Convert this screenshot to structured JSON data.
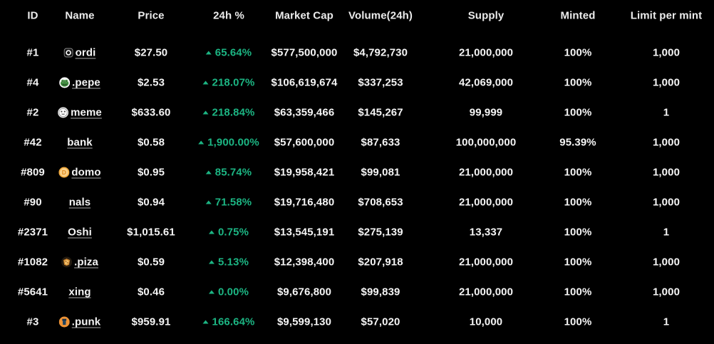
{
  "colors": {
    "background": "#000000",
    "text_primary": "#f5f5f5",
    "positive_green": "#1cb583",
    "link_underline": "#a8a8a8"
  },
  "table": {
    "headers": [
      "ID",
      "Name",
      "Price",
      "24h %",
      "Market Cap",
      "Volume(24h)",
      "Supply",
      "Minted",
      "Limit per mint"
    ],
    "rows": [
      {
        "id": "#1",
        "name": "ordi",
        "icon": "ordi-logo-icon",
        "price": "$27.50",
        "change": "65.64%",
        "change_direction": "up",
        "market_cap": "$577,500,000",
        "volume_24h": "$4,792,730",
        "supply": "21,000,000",
        "minted": "100%",
        "limit_per_mint": "1,000"
      },
      {
        "id": "#4",
        "name": ".pepe",
        "icon": "pepe-frog-icon",
        "price": "$2.53",
        "change": "218.07%",
        "change_direction": "up",
        "market_cap": "$106,619,674",
        "volume_24h": "$337,253",
        "supply": "42,069,000",
        "minted": "100%",
        "limit_per_mint": "1,000"
      },
      {
        "id": "#2",
        "name": "meme",
        "icon": "meme-face-icon",
        "price": "$633.60",
        "change": "218.84%",
        "change_direction": "up",
        "market_cap": "$63,359,466",
        "volume_24h": "$145,267",
        "supply": "99,999",
        "minted": "100%",
        "limit_per_mint": "1"
      },
      {
        "id": "#42",
        "name": "bank",
        "icon": null,
        "price": "$0.58",
        "change": "1,900.00%",
        "change_direction": "up",
        "market_cap": "$57,600,000",
        "volume_24h": "$87,633",
        "supply": "100,000,000",
        "minted": "95.39%",
        "limit_per_mint": "1,000"
      },
      {
        "id": "#809",
        "name": "domo",
        "icon": "domo-coin-icon",
        "price": "$0.95",
        "change": "85.74%",
        "change_direction": "up",
        "market_cap": "$19,958,421",
        "volume_24h": "$99,081",
        "supply": "21,000,000",
        "minted": "100%",
        "limit_per_mint": "1,000"
      },
      {
        "id": "#90",
        "name": "nals",
        "icon": null,
        "price": "$0.94",
        "change": "71.58%",
        "change_direction": "up",
        "market_cap": "$19,716,480",
        "volume_24h": "$708,653",
        "supply": "21,000,000",
        "minted": "100%",
        "limit_per_mint": "1,000"
      },
      {
        "id": "#2371",
        "name": "Oshi",
        "icon": null,
        "price": "$1,015.61",
        "change": "0.75%",
        "change_direction": "up",
        "market_cap": "$13,545,191",
        "volume_24h": "$275,139",
        "supply": "13,337",
        "minted": "100%",
        "limit_per_mint": "1"
      },
      {
        "id": "#1082",
        "name": ".piza",
        "icon": "piza-shield-icon",
        "price": "$0.59",
        "change": "5.13%",
        "change_direction": "up",
        "market_cap": "$12,398,400",
        "volume_24h": "$207,918",
        "supply": "21,000,000",
        "minted": "100%",
        "limit_per_mint": "1,000"
      },
      {
        "id": "#5641",
        "name": "xing",
        "icon": null,
        "price": "$0.46",
        "change": "0.00%",
        "change_direction": "up",
        "market_cap": "$9,676,800",
        "volume_24h": "$99,839",
        "supply": "21,000,000",
        "minted": "100%",
        "limit_per_mint": "1,000"
      },
      {
        "id": "#3",
        "name": ".punk",
        "icon": "punk-face-icon",
        "price": "$959.91",
        "change": "166.64%",
        "change_direction": "up",
        "market_cap": "$9,599,130",
        "volume_24h": "$57,020",
        "supply": "10,000",
        "minted": "100%",
        "limit_per_mint": "1"
      }
    ]
  }
}
